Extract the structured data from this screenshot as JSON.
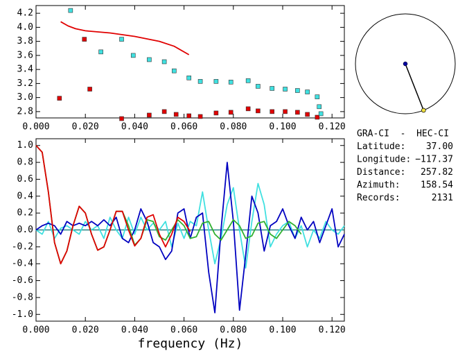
{
  "chart_data": [
    {
      "type": "scatter",
      "xlim": [
        0,
        0.125
      ],
      "ylim": [
        2.71,
        4.31
      ],
      "xticks": [
        {
          "value": 0,
          "label": "0.000"
        },
        {
          "value": 0.02,
          "label": "0.020"
        },
        {
          "value": 0.04,
          "label": "0.040"
        },
        {
          "value": 0.06,
          "label": "0.060"
        },
        {
          "value": 0.08,
          "label": "0.080"
        },
        {
          "value": 0.1,
          "label": "0.100"
        },
        {
          "value": 0.12,
          "label": "0.120"
        }
      ],
      "yticks": [
        2.8,
        {
          "value": 3,
          "label": "3.0"
        },
        3.2,
        3.4,
        3.6,
        3.8,
        {
          "value": 4,
          "label": "4.0"
        },
        4.2
      ],
      "series": [
        {
          "type": "line",
          "color": "#e00000",
          "x": [
            0.01,
            0.013,
            0.016,
            0.02,
            0.03,
            0.04,
            0.05,
            0.056,
            0.062
          ],
          "values": [
            4.08,
            4.02,
            3.98,
            3.95,
            3.92,
            3.87,
            3.8,
            3.73,
            3.61
          ]
        },
        {
          "type": "scatter",
          "color": "#e00000",
          "x": [
            0.0095,
            0.0196,
            0.0218,
            0.0347,
            0.0459,
            0.052,
            0.0568,
            0.062,
            0.0666,
            0.073,
            0.079,
            0.086,
            0.09,
            0.0957,
            0.101,
            0.106,
            0.11,
            0.114
          ],
          "values": [
            2.99,
            3.83,
            3.12,
            2.7,
            2.75,
            2.8,
            2.76,
            2.74,
            2.73,
            2.78,
            2.79,
            2.84,
            2.81,
            2.8,
            2.8,
            2.79,
            2.76,
            2.72
          ]
        },
        {
          "type": "scatter",
          "color": "#40e0e0",
          "x": [
            0.014,
            0.0263,
            0.0347,
            0.0394,
            0.0459,
            0.052,
            0.056,
            0.062,
            0.0666,
            0.073,
            0.079,
            0.086,
            0.09,
            0.0957,
            0.101,
            0.106,
            0.11,
            0.114,
            0.1148,
            0.1155
          ],
          "values": [
            4.24,
            3.65,
            3.83,
            3.6,
            3.54,
            3.51,
            3.38,
            3.28,
            3.23,
            3.23,
            3.22,
            3.24,
            3.16,
            3.13,
            3.12,
            3.1,
            3.08,
            3.01,
            2.87,
            2.77
          ]
        }
      ]
    },
    {
      "type": "line",
      "xlabel": "frequency (Hz)",
      "xlim": [
        0,
        0.125
      ],
      "ylim": [
        -1.08,
        1.08
      ],
      "xticks": [
        {
          "value": 0,
          "label": "0.000"
        },
        {
          "value": 0.02,
          "label": "0.020"
        },
        {
          "value": 0.04,
          "label": "0.040"
        },
        {
          "value": 0.06,
          "label": "0.060"
        },
        {
          "value": 0.08,
          "label": "0.080"
        },
        {
          "value": 0.1,
          "label": "0.100"
        },
        {
          "value": 0.12,
          "label": "0.120"
        }
      ],
      "yticks": [
        {
          "value": 1,
          "label": "1.0"
        },
        0.8,
        0.6,
        0.4,
        0.2,
        {
          "value": 0,
          "label": "0.0"
        },
        -0.2,
        -0.4,
        -0.6,
        -0.8,
        {
          "value": -1,
          "label": "-1.0"
        }
      ],
      "hline": {
        "value": 0,
        "color": "#007070"
      },
      "x": [
        0,
        0.0025,
        0.005,
        0.0075,
        0.01,
        0.0125,
        0.015,
        0.0175,
        0.02,
        0.0225,
        0.025,
        0.0275,
        0.03,
        0.0325,
        0.035,
        0.0375,
        0.04,
        0.0425,
        0.045,
        0.0475,
        0.05,
        0.0525,
        0.055,
        0.0575,
        0.06,
        0.0625,
        0.065,
        0.0675,
        0.07,
        0.0725,
        0.075,
        0.0775,
        0.08,
        0.0825,
        0.085,
        0.0875,
        0.09,
        0.0925,
        0.095,
        0.0975,
        0.1,
        0.1025,
        0.105,
        0.1075,
        0.11,
        0.1125,
        0.115,
        0.1175,
        0.12,
        0.1225,
        0.125
      ],
      "series": [
        {
          "color": "#40e0e0",
          "values": [
            0.0,
            -0.05,
            0.1,
            -0.1,
            0.02,
            0.05,
            0.0,
            -0.05,
            0.1,
            0.0,
            0.05,
            -0.1,
            0.15,
            0.0,
            -0.1,
            0.15,
            -0.05,
            0.15,
            0.0,
            0.08,
            0.0,
            0.1,
            -0.2,
            0.08,
            -0.1,
            0.1,
            0.05,
            0.45,
            0.0,
            -0.4,
            -0.1,
            0.3,
            0.5,
            0.0,
            -0.45,
            0.1,
            0.55,
            0.3,
            -0.2,
            -0.05,
            0.05,
            0.1,
            -0.1,
            0.05,
            -0.2,
            0.0,
            -0.1,
            0.1,
            0.0,
            -0.05,
            0.05
          ]
        },
        {
          "color": "#0000c0",
          "values": [
            0.0,
            0.05,
            0.08,
            0.05,
            -0.05,
            0.1,
            0.05,
            0.08,
            0.05,
            0.1,
            0.05,
            0.12,
            0.05,
            0.15,
            -0.1,
            -0.15,
            0.0,
            0.25,
            0.1,
            -0.15,
            -0.2,
            -0.35,
            -0.25,
            0.2,
            0.25,
            -0.1,
            0.15,
            0.2,
            -0.5,
            -0.98,
            0.0,
            0.8,
            0.1,
            -0.95,
            -0.3,
            0.4,
            0.2,
            -0.25,
            0.05,
            0.1,
            0.25,
            0.05,
            -0.1,
            0.15,
            0.0,
            0.1,
            -0.15,
            0.05,
            0.25,
            -0.2,
            -0.05
          ]
        },
        {
          "color": "#30b030",
          "values": [
            1.0,
            0.92,
            0.45,
            -0.15,
            -0.4,
            -0.25,
            0.05,
            0.28,
            0.2,
            -0.05,
            -0.24,
            -0.2,
            0.0,
            0.22,
            0.22,
            0.05,
            -0.18,
            -0.1,
            0.12,
            0.1,
            -0.08,
            -0.12,
            0.0,
            0.12,
            0.05,
            -0.1,
            -0.08,
            0.08,
            0.1,
            -0.05,
            -0.12,
            0.0,
            0.12,
            0.05,
            -0.1,
            -0.07,
            0.08,
            0.1,
            -0.05,
            -0.1,
            0.0,
            0.1,
            0.05,
            -0.05,
            null,
            null,
            null,
            null,
            null,
            null,
            null
          ]
        },
        {
          "color": "#e00000",
          "values": [
            1.0,
            0.92,
            0.45,
            -0.15,
            -0.4,
            -0.25,
            0.05,
            0.28,
            0.2,
            -0.05,
            -0.24,
            -0.2,
            0.0,
            0.22,
            0.22,
            0.0,
            -0.19,
            -0.1,
            0.15,
            0.18,
            -0.05,
            -0.2,
            -0.05,
            0.15,
            0.1,
            -0.02,
            null,
            null,
            null,
            null,
            null,
            null,
            null,
            null,
            null,
            null,
            null,
            null,
            null,
            null,
            null,
            null,
            null,
            null,
            null,
            null,
            null,
            null,
            null,
            null,
            null
          ]
        }
      ]
    }
  ],
  "station": {
    "pair": "GRA-CI  -  HEC-CI",
    "rows": [
      {
        "label": "Latitude:",
        "value": "37.00"
      },
      {
        "label": "Longitude:",
        "value": "−117.37"
      },
      {
        "label": "Distance:",
        "value": "257.82"
      },
      {
        "label": "Azimuth:",
        "value": "158.54"
      },
      {
        "label": "Records:",
        "value": "2131"
      }
    ]
  }
}
